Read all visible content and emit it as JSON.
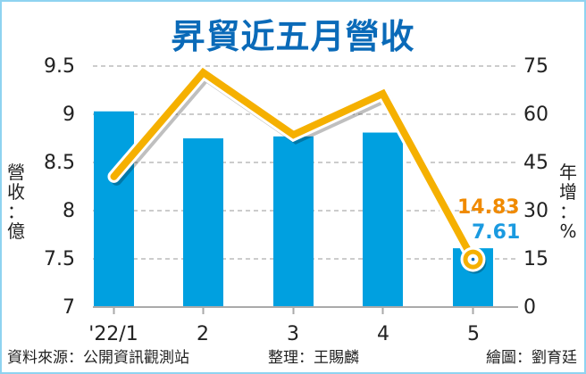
{
  "title": "昇貿近五月營收",
  "left_axis": {
    "label_chars": [
      "營",
      "收",
      "：",
      "億"
    ],
    "ticks": [
      "9.5",
      "9",
      "8.5",
      "8",
      "7.5",
      "7"
    ]
  },
  "right_axis": {
    "label_chars": [
      "年",
      "增",
      "：",
      "%"
    ],
    "ticks": [
      "75",
      "60",
      "45",
      "30",
      "15",
      "0"
    ]
  },
  "x_ticks": [
    "'22/1",
    "2",
    "3",
    "4",
    "5"
  ],
  "annotations": {
    "line_last": "14.83",
    "bar_last": "7.61"
  },
  "footer": {
    "source": "資料來源：公開資訊觀測站",
    "compiled": "整理：王賜麟",
    "graphic": "繪圖：劉育廷"
  },
  "colors": {
    "bar": "#00a0e0",
    "line": "#f5b000",
    "title": "#0a6ab8",
    "frame": "#8fd3f0"
  },
  "chart_data": {
    "type": "bar+line",
    "title": "昇貿近五月營收",
    "categories": [
      "'22/1",
      "2",
      "3",
      "4",
      "5"
    ],
    "series": [
      {
        "name": "營收(億)",
        "type": "bar",
        "axis": "left",
        "values": [
          9.03,
          8.75,
          8.77,
          8.81,
          7.61
        ]
      },
      {
        "name": "年增(%)",
        "type": "line",
        "axis": "right",
        "values": [
          40.6,
          73.0,
          53.6,
          66.4,
          14.83
        ]
      }
    ],
    "ylabel_left": "營收：億",
    "ylabel_right": "年增：%",
    "ylim_left": [
      7,
      9.5
    ],
    "ylim_right": [
      0,
      75
    ],
    "grid": true,
    "data_labels": {
      "bar_last": "7.61",
      "line_last": "14.83"
    }
  }
}
